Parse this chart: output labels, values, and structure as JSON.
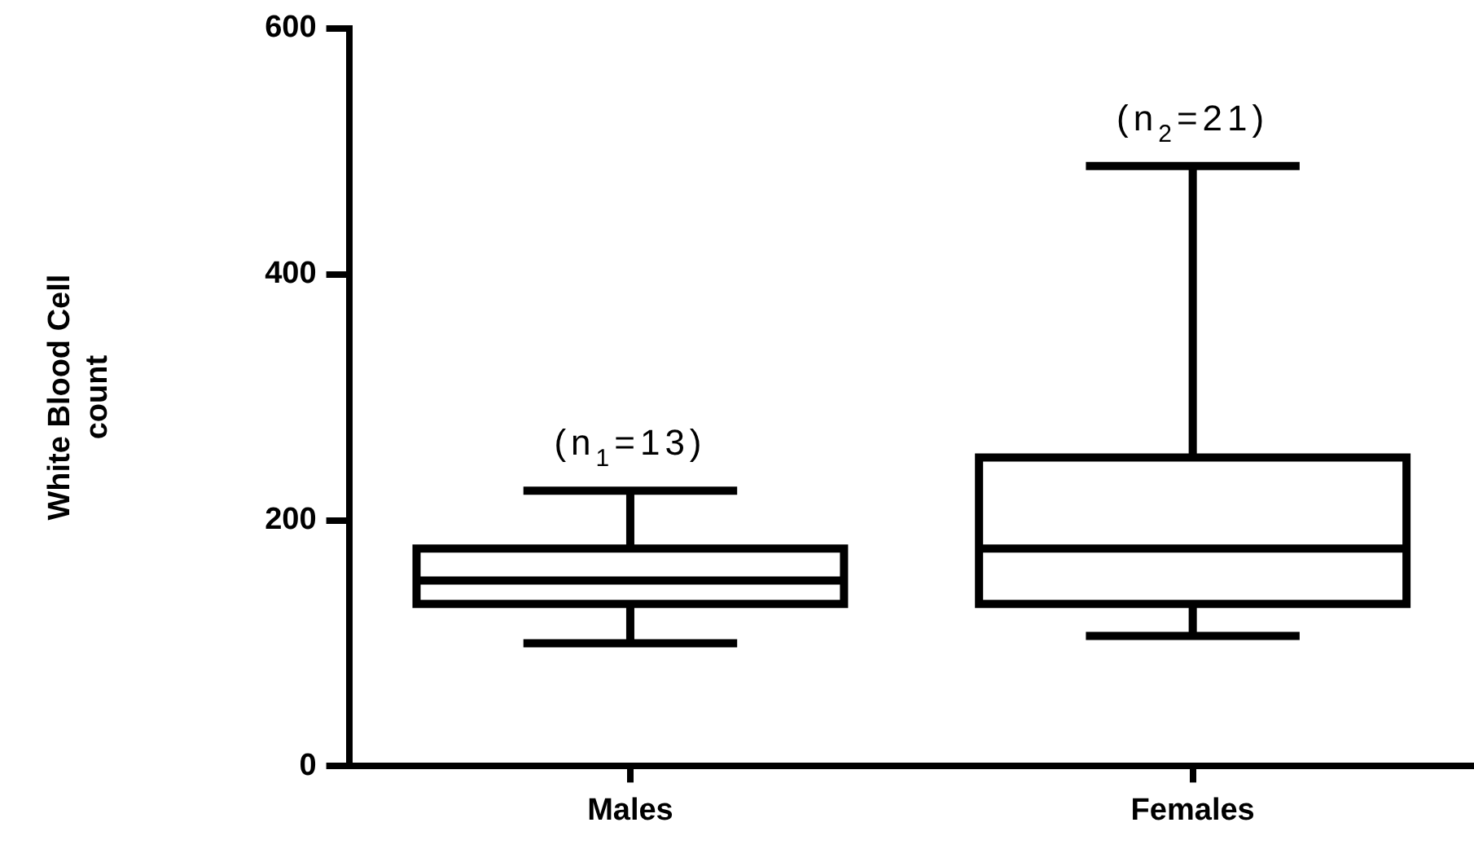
{
  "chart_data": {
    "type": "box",
    "ylabel": "White Blood Cell count",
    "categories": [
      "Males",
      "Females"
    ],
    "boxes": [
      {
        "low": 100,
        "q1": 132,
        "median": 151,
        "q3": 177,
        "high": 224
      },
      {
        "low": 106,
        "q1": 132,
        "median": 177,
        "q3": 251,
        "high": 488
      }
    ],
    "color": "#000000",
    "ylim": [
      0,
      600
    ],
    "yticks": [
      0,
      200,
      400,
      600
    ],
    "grid": false,
    "legend": false,
    "annotations": [
      "(n$_{1}$=13)",
      "(n$_{2}$=21)"
    ]
  }
}
